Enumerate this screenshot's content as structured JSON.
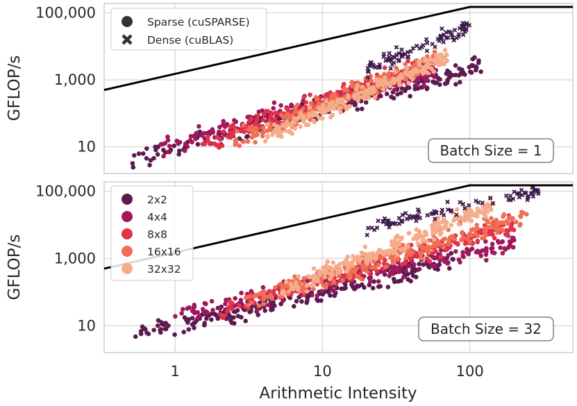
{
  "chart_data": {
    "type": "scatter",
    "x_label": "Arithmetic Intensity",
    "x_scale": "log",
    "x_range": [
      0.33,
      500
    ],
    "x_ticks": [
      {
        "value": 1,
        "label": "1"
      },
      {
        "value": 10,
        "label": "10"
      },
      {
        "value": 100,
        "label": "100"
      }
    ],
    "y_scale": "log",
    "grid": true,
    "marker_legend": [
      {
        "label": "Sparse (cuSPARSE)",
        "marker": "circle"
      },
      {
        "label": "Dense (cuBLAS)",
        "marker": "x"
      }
    ],
    "color_legend": [
      {
        "label": "2x2",
        "color": "#5c1a4f"
      },
      {
        "label": "4x4",
        "color": "#a1175d"
      },
      {
        "label": "8x8",
        "color": "#e0334a"
      },
      {
        "label": "16x16",
        "color": "#f06e53"
      },
      {
        "label": "32x32",
        "color": "#f5ac8a"
      }
    ],
    "dense_color": "#3d1a4a",
    "panels": [
      {
        "annotation": "Batch Size = 1",
        "y_label": "GFLOP/s",
        "y_range": [
          1.6,
          190000
        ],
        "y_ticks": [
          {
            "value": 10,
            "label": "10"
          },
          {
            "value": 1000,
            "label": "1,000"
          },
          {
            "value": 100000,
            "label": "100,000"
          }
        ],
        "roofline": [
          [
            0.33,
            500
          ],
          [
            100,
            150000
          ],
          [
            500,
            150000
          ]
        ],
        "series": [
          {
            "name": "2x2",
            "sparse": {
              "x": [
                0.5,
                120
              ],
              "y": [
                4,
                2500
              ]
            },
            "dense": null
          },
          {
            "name": "4x4",
            "sparse": {
              "x": [
                0.8,
                60
              ],
              "y": [
                10,
                2000
              ]
            },
            "dense": null
          },
          {
            "name": "8x8",
            "sparse": {
              "x": [
                1.5,
                50
              ],
              "y": [
                10,
                3000
              ]
            },
            "dense": null
          },
          {
            "name": "16x16",
            "sparse": {
              "x": [
                2.5,
                60
              ],
              "y": [
                15,
                4000
              ]
            },
            "dense": null
          },
          {
            "name": "32x32",
            "sparse": {
              "x": [
                4,
                70
              ],
              "y": [
                20,
                5000
              ]
            },
            "dense": {
              "x": [
                20,
                100
              ],
              "y": [
                2000,
                40000
              ]
            }
          }
        ]
      },
      {
        "annotation": "Batch Size = 32",
        "y_label": "GFLOP/s",
        "y_range": [
          1.6,
          190000
        ],
        "y_ticks": [
          {
            "value": 10,
            "label": "10"
          },
          {
            "value": 1000,
            "label": "1,000"
          },
          {
            "value": 100000,
            "label": "100,000"
          }
        ],
        "roofline": [
          [
            0.33,
            500
          ],
          [
            100,
            150000
          ],
          [
            500,
            150000
          ]
        ],
        "series": [
          {
            "name": "2x2",
            "sparse": {
              "x": [
                0.5,
                80
              ],
              "y": [
                5,
                900
              ]
            },
            "dense": null
          },
          {
            "name": "4x4",
            "sparse": {
              "x": [
                1,
                200
              ],
              "y": [
                20,
                3000
              ]
            },
            "dense": null
          },
          {
            "name": "8x8",
            "sparse": {
              "x": [
                2,
                200
              ],
              "y": [
                30,
                10000
              ]
            },
            "dense": null
          },
          {
            "name": "16x16",
            "sparse": {
              "x": [
                3,
                250
              ],
              "y": [
                50,
                20000
              ]
            },
            "dense": null
          },
          {
            "name": "32x32",
            "sparse": {
              "x": [
                5,
                150
              ],
              "y": [
                100,
                40000
              ]
            },
            "dense": {
              "x": [
                20,
                300
              ],
              "y": [
                8000,
                110000
              ]
            }
          }
        ]
      }
    ]
  }
}
